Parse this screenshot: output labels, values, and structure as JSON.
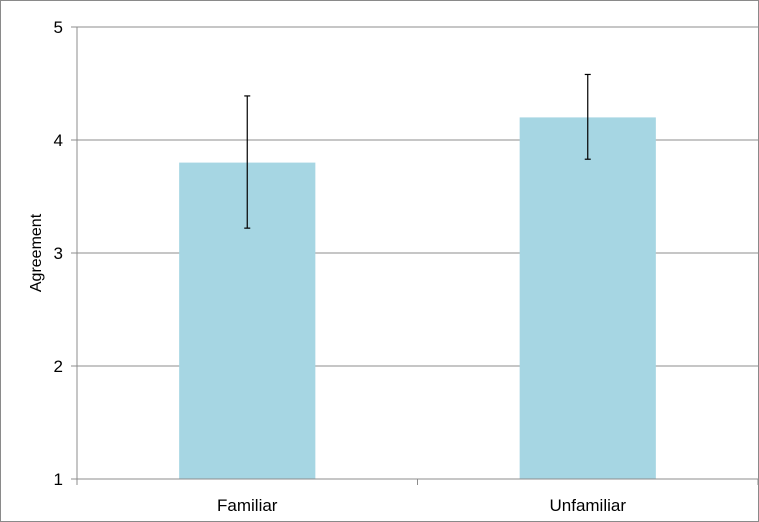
{
  "chart_data": {
    "type": "bar",
    "title": "",
    "xlabel": "",
    "ylabel": "Agreement",
    "categories": [
      "Familiar",
      "Unfamiliar"
    ],
    "values": [
      3.8,
      4.2
    ],
    "error_bars": [
      {
        "low": 3.22,
        "high": 4.39
      },
      {
        "low": 3.83,
        "high": 4.58
      }
    ],
    "ylim": [
      1,
      5
    ],
    "yticks": [
      "1",
      "2",
      "3",
      "4",
      "5"
    ],
    "grid": true,
    "legend": "none",
    "colors": {
      "bar": "#a6d6e3",
      "grid": "#8c8c8c",
      "axis": "#8c8c8c",
      "error_bar": "#000000"
    }
  }
}
